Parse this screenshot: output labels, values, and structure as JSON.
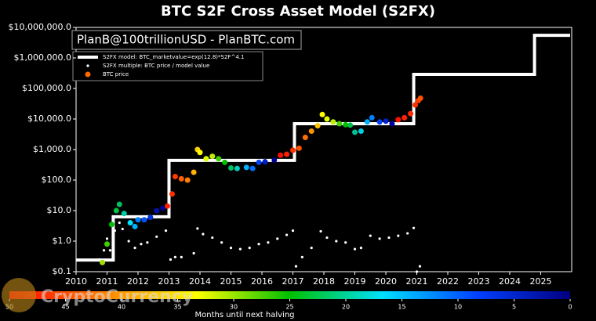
{
  "chart_data": {
    "type": "scatter",
    "title": "BTC S2F Cross Asset Model (S2FX)",
    "watermark": "PlanB@100trillionUSD  -  PlanBTC.com",
    "overlay_watermark": "CryptoCurrency",
    "log_scale_y": true,
    "xlim": [
      2010,
      2026
    ],
    "xticks": [
      2010,
      2011,
      2012,
      2013,
      2014,
      2015,
      2016,
      2017,
      2018,
      2019,
      2020,
      2021,
      2022,
      2023,
      2024,
      2025
    ],
    "ylim": [
      0.1,
      10000000
    ],
    "yticks": [
      {
        "value": 0.1,
        "label": "$0.1"
      },
      {
        "value": 1,
        "label": "$1.0"
      },
      {
        "value": 10,
        "label": "$10.0"
      },
      {
        "value": 100,
        "label": "$100.0"
      },
      {
        "value": 1000,
        "label": "$1,000.0"
      },
      {
        "value": 10000,
        "label": "$10,000.0"
      },
      {
        "value": 100000,
        "label": "$100,000.0"
      },
      {
        "value": 1000000,
        "label": "$1,000,000.0"
      },
      {
        "value": 10000000,
        "label": "$10,000,000.0"
      }
    ],
    "series": [
      {
        "name": "S2FX model: BTC_marketvalue=exp(12.8)*S2F^4.1",
        "kind": "line",
        "color": "#ffffff",
        "x": [
          2010,
          2011.2,
          2011.2,
          2013.0,
          2013.0,
          2017.05,
          2017.05,
          2020.9,
          2020.9,
          2024.8,
          2024.8,
          2025.95
        ],
        "values": [
          0.24,
          0.24,
          6.3,
          6.3,
          440,
          440,
          7000,
          7000,
          290000,
          290000,
          5500000,
          5500000
        ]
      },
      {
        "name": "S2FX multiple: BTC price / model value",
        "kind": "dots",
        "color": "#ffffff",
        "x": [
          2010.75,
          2010.9,
          2011.0,
          2011.1,
          2011.25,
          2011.4,
          2011.5,
          2011.7,
          2011.9,
          2012.1,
          2012.3,
          2012.6,
          2012.9,
          2013.05,
          2013.2,
          2013.4,
          2013.8,
          2013.92,
          2014.1,
          2014.4,
          2014.7,
          2015.0,
          2015.3,
          2015.6,
          2015.9,
          2016.2,
          2016.5,
          2016.8,
          2017.0,
          2017.1,
          2017.3,
          2017.6,
          2017.9,
          2018.1,
          2018.4,
          2018.7,
          2019.0,
          2019.2,
          2019.5,
          2019.8,
          2020.1,
          2020.4,
          2020.7,
          2020.9,
          2021.0,
          2021.1
        ],
        "values": [
          0.25,
          0.5,
          1.2,
          0.5,
          2.2,
          4,
          2.5,
          1.0,
          0.6,
          0.8,
          0.9,
          1.4,
          2.2,
          0.25,
          0.3,
          0.3,
          0.4,
          2.6,
          1.7,
          1.3,
          0.9,
          0.6,
          0.55,
          0.6,
          0.8,
          0.9,
          1.2,
          1.6,
          2.2,
          0.15,
          0.3,
          0.6,
          2.1,
          1.3,
          1.0,
          0.9,
          0.55,
          0.6,
          1.5,
          1.2,
          1.3,
          1.5,
          1.8,
          2.7,
          0.1,
          0.15
        ]
      },
      {
        "name": "BTC price",
        "kind": "dots",
        "color": "#ff6a00",
        "x": [
          2010.85,
          2011.0,
          2011.15,
          2011.3,
          2011.4,
          2011.55,
          2011.75,
          2011.9,
          2012.0,
          2012.2,
          2012.4,
          2012.6,
          2012.8,
          2012.95,
          2013.1,
          2013.2,
          2013.4,
          2013.6,
          2013.8,
          2013.92,
          2014.0,
          2014.2,
          2014.4,
          2014.6,
          2014.8,
          2015.0,
          2015.2,
          2015.5,
          2015.7,
          2015.9,
          2016.1,
          2016.4,
          2016.6,
          2016.8,
          2017.0,
          2017.2,
          2017.4,
          2017.6,
          2017.8,
          2017.95,
          2018.1,
          2018.3,
          2018.5,
          2018.7,
          2018.85,
          2019.0,
          2019.2,
          2019.4,
          2019.55,
          2019.8,
          2020.0,
          2020.2,
          2020.4,
          2020.6,
          2020.8,
          2020.95,
          2021.05,
          2021.12
        ],
        "values": [
          0.2,
          0.8,
          3.5,
          10,
          16,
          8,
          4,
          3,
          5,
          5,
          6,
          10,
          12,
          14,
          35,
          130,
          110,
          100,
          180,
          1000,
          800,
          500,
          600,
          500,
          380,
          250,
          240,
          260,
          240,
          380,
          400,
          450,
          650,
          700,
          950,
          1100,
          2500,
          4000,
          6000,
          14000,
          10000,
          8000,
          7000,
          6500,
          6300,
          3700,
          4000,
          8000,
          11000,
          8000,
          8500,
          7000,
          9500,
          11000,
          15000,
          29000,
          40000,
          48000
        ],
        "colors": [
          "#a0e000",
          "#40d000",
          "#00c000",
          "#00c040",
          "#00c060",
          "#00d0a0",
          "#00e0ff",
          "#00b0ff",
          "#0080ff",
          "#0050ff",
          "#0030e0",
          "#0010b0",
          "#000090",
          "#ff2000",
          "#ff3000",
          "#ff3800",
          "#ff6000",
          "#ff8000",
          "#ffb000",
          "#ffd000",
          "#ffff00",
          "#e0ff00",
          "#c0f000",
          "#40d000",
          "#00c000",
          "#00c060",
          "#00d0c0",
          "#00b0ff",
          "#0070ff",
          "#0040f0",
          "#0020d0",
          "#000090",
          "#ff1000",
          "#ff2000",
          "#ff3000",
          "#ff5000",
          "#ff7000",
          "#ff9000",
          "#ffc000",
          "#ffff00",
          "#e0ff00",
          "#c0f000",
          "#40d000",
          "#00c000",
          "#00c050",
          "#00c090",
          "#00d0e0",
          "#00b0ff",
          "#0080ff",
          "#0040f0",
          "#0020d0",
          "#0000a0",
          "#ff1000",
          "#ff2000",
          "#ff2800",
          "#ff3000",
          "#ff4000",
          "#ff5000"
        ]
      }
    ],
    "colorbar_label": "Months until next halving",
    "colorbar_lim": [
      50,
      0
    ],
    "colorbar_ticks": [
      50,
      45,
      40,
      35,
      30,
      25,
      20,
      15,
      10,
      5,
      0
    ],
    "colorbar_colors": [
      "#ff0000",
      "#ff8000",
      "#ffff00",
      "#00c000",
      "#00e0ff",
      "#0040ff",
      "#000080"
    ]
  }
}
